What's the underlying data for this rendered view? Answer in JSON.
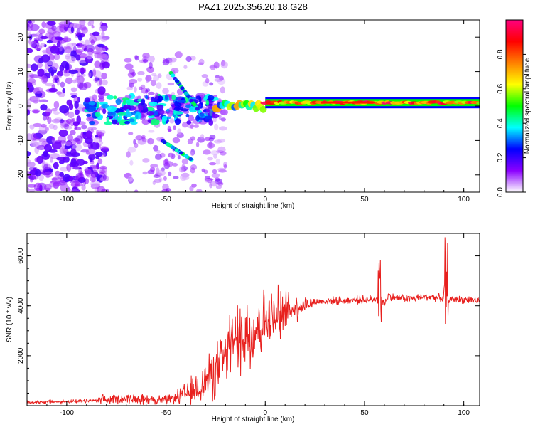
{
  "figure": {
    "title": "PAZ1.2025.356.20.18.G28"
  },
  "colorbar": {
    "label": "Normalized spectral amplitude",
    "ticks": [
      0.0,
      0.2,
      0.4,
      0.6,
      0.8
    ],
    "tick_labels": [
      "0.0",
      "0.2",
      "0.4",
      "0.6",
      "0.8"
    ],
    "range": [
      0.0,
      1.0
    ],
    "colors": [
      "#ffffff",
      "#8b00ff",
      "#0000ff",
      "#00ffff",
      "#00ff00",
      "#ffff00",
      "#ff8000",
      "#ff0000",
      "#ff0080"
    ]
  },
  "chart_data": [
    {
      "type": "heatmap",
      "title": "PAZ1.2025.356.20.18.G28",
      "xlabel": "Height of straight line (km)",
      "ylabel": "Frequency (Hz)",
      "xlim": [
        -120,
        108
      ],
      "ylim": [
        -25,
        25
      ],
      "xticks": [
        -100,
        -50,
        0,
        50,
        100
      ],
      "xtick_labels": [
        "-100",
        "-50",
        "0",
        "50",
        "100"
      ],
      "yticks": [
        -20,
        -10,
        0,
        10,
        20
      ],
      "ytick_labels": [
        "-20",
        "-10",
        "0",
        "10",
        "20"
      ],
      "colorscale": "Normalized spectral amplitude",
      "features": [
        {
          "name": "main tone",
          "x_range": [
            0,
            108
          ],
          "freq": 1,
          "amplitude": 0.9
        },
        {
          "name": "tone start",
          "x_range": [
            -25,
            0
          ],
          "freq": 0,
          "amplitude": 0.5
        },
        {
          "name": "scattered energy",
          "x_range": [
            -90,
            -25
          ],
          "freq_range": [
            -5,
            3
          ],
          "amplitude": 0.35
        },
        {
          "name": "noise",
          "x_range": [
            -120,
            -80
          ],
          "freq_range": [
            -25,
            25
          ],
          "amplitude": 0.1
        }
      ]
    },
    {
      "type": "line",
      "title": "",
      "xlabel": "Height of straight line (km)",
      "ylabel": "SNR (10 * v/v)",
      "xlim": [
        -120,
        108
      ],
      "ylim": [
        0,
        6900
      ],
      "xticks": [
        -100,
        -50,
        0,
        50,
        100
      ],
      "xtick_labels": [
        "-100",
        "-50",
        "0",
        "50",
        "100"
      ],
      "yticks": [
        2000,
        4000,
        6000
      ],
      "ytick_labels": [
        "2000",
        "4000",
        "6000"
      ],
      "series": [
        {
          "name": "SNR",
          "color": "#e8201e",
          "x": [
            -120,
            -110,
            -100,
            -90,
            -80,
            -70,
            -60,
            -50,
            -45,
            -40,
            -35,
            -30,
            -25,
            -22,
            -20,
            -18,
            -15,
            -12,
            -10,
            -8,
            -5,
            -2,
            0,
            3,
            5,
            8,
            10,
            12,
            15,
            20,
            25,
            30,
            35,
            40,
            45,
            50,
            55,
            57,
            58,
            59,
            60,
            62,
            65,
            70,
            75,
            80,
            85,
            88,
            90,
            91,
            92,
            93,
            95,
            100,
            105,
            108
          ],
          "values": [
            130,
            150,
            160,
            180,
            240,
            300,
            240,
            230,
            300,
            450,
            650,
            1000,
            1350,
            1700,
            2000,
            2300,
            2600,
            2850,
            3000,
            3000,
            3150,
            3300,
            3450,
            3500,
            3450,
            3650,
            3800,
            3850,
            3950,
            4050,
            4150,
            4180,
            4200,
            4200,
            4230,
            4250,
            4250,
            4400,
            4600,
            4200,
            4100,
            4400,
            4330,
            4300,
            4300,
            4350,
            4350,
            4300,
            4350,
            4200,
            4300,
            4250,
            4250,
            4250,
            4230,
            4200
          ]
        }
      ]
    }
  ]
}
